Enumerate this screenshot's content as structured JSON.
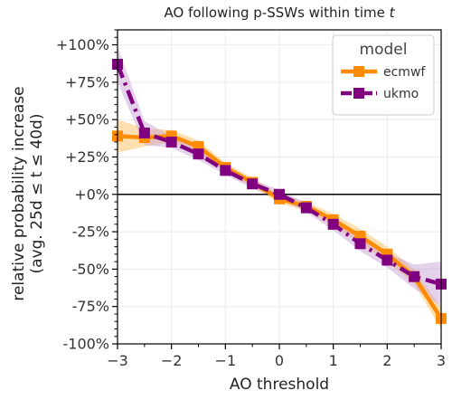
{
  "chart_data": {
    "type": "line",
    "title": "AO following p-SSWs within time ",
    "title_var": "t",
    "xlabel": "AO threshold",
    "ylabel_line1": "relative probability increase",
    "ylabel_line2": "(avg. 25d ≤ t ≤ 40d)",
    "xlim": [
      -3,
      3
    ],
    "ylim": [
      -100,
      110
    ],
    "xticks": [
      -3,
      -2,
      -1,
      0,
      1,
      2,
      3
    ],
    "xtick_labels": [
      "−3",
      "−2",
      "−1",
      "0",
      "1",
      "2",
      "3"
    ],
    "yticks": [
      100,
      75,
      50,
      25,
      0,
      -25,
      -50,
      -75,
      -100
    ],
    "ytick_labels": [
      "+100%",
      "+75%",
      "+50%",
      "+25%",
      "+0%",
      "-25%",
      "-50%",
      "-75%",
      "-100%"
    ],
    "grid": true,
    "legend": {
      "title": "model",
      "placement": "top-right"
    },
    "x": [
      -3,
      -2.5,
      -2,
      -1.5,
      -1,
      -0.5,
      0,
      0.5,
      1,
      1.5,
      2,
      2.5,
      3
    ],
    "series": [
      {
        "name": "ecmwf",
        "color": "#ff8c00",
        "band_color": "#ffb74d",
        "line_style": "solid",
        "values": [
          39,
          38,
          39,
          32,
          18,
          8,
          -3,
          -8,
          -17,
          -28,
          -40,
          -55,
          -83
        ],
        "lower": [
          28,
          32,
          35,
          28,
          15,
          5,
          -6,
          -11,
          -21,
          -33,
          -45,
          -60,
          -90
        ],
        "upper": [
          50,
          44,
          43,
          36,
          21,
          11,
          0,
          -5,
          -13,
          -23,
          -35,
          -50,
          -76
        ]
      },
      {
        "name": "ukmo",
        "color": "#800080",
        "band_color": "#c39bd3",
        "line_style": "dashdot",
        "values": [
          87,
          41,
          35,
          27,
          16,
          7,
          0,
          -9,
          -20,
          -33,
          -44,
          -55,
          -60
        ],
        "lower": [
          75,
          33,
          31,
          23,
          13,
          4,
          -3,
          -12,
          -24,
          -38,
          -49,
          -63,
          -75
        ],
        "upper": [
          99,
          49,
          39,
          31,
          19,
          10,
          3,
          -6,
          -16,
          -28,
          -39,
          -47,
          -45
        ]
      }
    ]
  }
}
